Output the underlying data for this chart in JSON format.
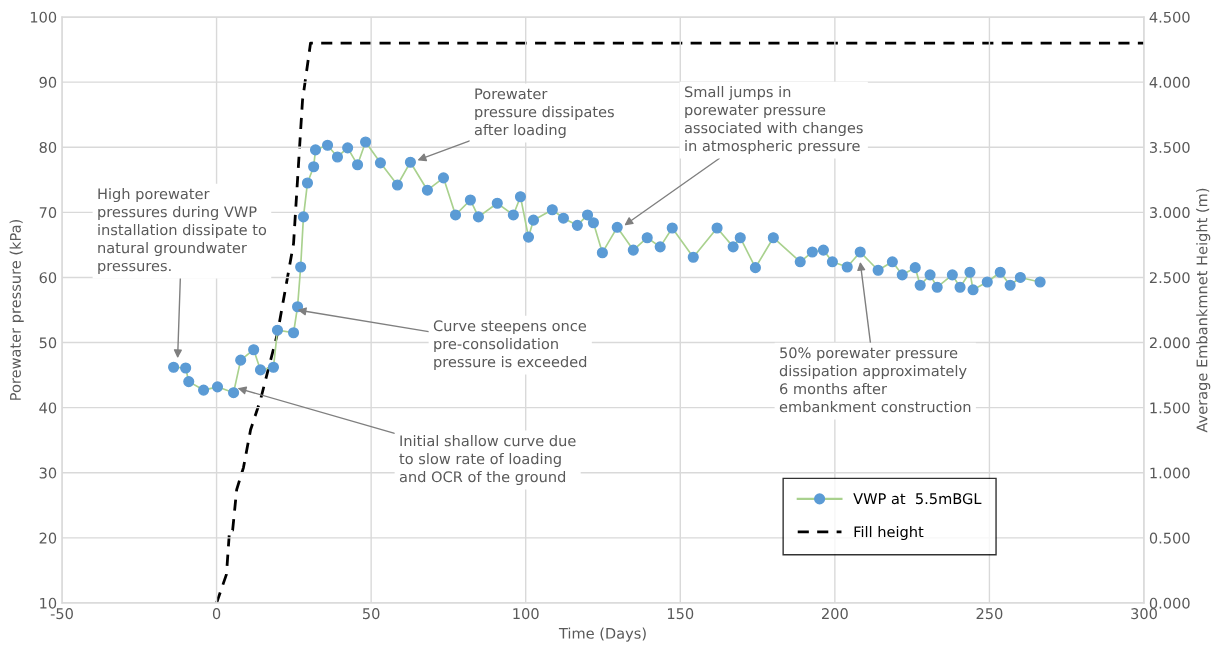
{
  "chart_data": {
    "type": "line",
    "xlabel": "Time (Days)",
    "ylabel": "Porewater pressure (kPa)",
    "y2label": "Average Embankmnet Height (m)",
    "xlim": [
      -50,
      300
    ],
    "xticks": [
      -50,
      0,
      50,
      100,
      150,
      200,
      250,
      300
    ],
    "ylim": [
      10,
      100
    ],
    "yticks": [
      10,
      20,
      30,
      40,
      50,
      60,
      70,
      80,
      90,
      100
    ],
    "y2lim": [
      0,
      4.5
    ],
    "y2ticks": [
      {
        "value": 0,
        "label": "0.000"
      },
      {
        "value": 0.5,
        "label": "0.500"
      },
      {
        "value": 1,
        "label": "1.000"
      },
      {
        "value": 1.5,
        "label": "1.500"
      },
      {
        "value": 2,
        "label": "2.000"
      },
      {
        "value": 2.5,
        "label": "2.500"
      },
      {
        "value": 3,
        "label": "3.000"
      },
      {
        "value": 3.5,
        "label": "3.500"
      },
      {
        "value": 4,
        "label": "4.000"
      },
      {
        "value": 4.5,
        "label": "4.500"
      }
    ],
    "grid": true,
    "legend": "bottom right",
    "series": [
      {
        "name": "VWP at  5.5mBGL",
        "color": "#5b9bd5",
        "marker": "circle",
        "line_style": "solid",
        "x": [
          -13.9,
          -10,
          -9,
          -4.2,
          0.3,
          5.5,
          7.8,
          12,
          14.2,
          18.4,
          19.7,
          24.9,
          26.2,
          27.2,
          28.1,
          29.4,
          31.4,
          32,
          35.9,
          39.1,
          42.4,
          45.6,
          48.2,
          53,
          58.5,
          62.7,
          68.2,
          73.4,
          77.3,
          82.1,
          84.7,
          90.8,
          96,
          98.3,
          100.9,
          102.5,
          108.6,
          112.2,
          116.7,
          120,
          121.9,
          124.8,
          129.6,
          134.8,
          139.3,
          143.5,
          147.4,
          154.2,
          161.9,
          167.1,
          169.4,
          174.3,
          180.1,
          188.8,
          192.7,
          196.3,
          199.2,
          204,
          208.2,
          214,
          218.6,
          221.8,
          226,
          227.6,
          230.8,
          233.1,
          238,
          240.5,
          243.7,
          244.7,
          249.3,
          253.5,
          256.7,
          260,
          266.4
        ],
        "values": [
          46.2,
          46.1,
          44,
          42.7,
          43.2,
          42.3,
          47.3,
          48.9,
          45.8,
          46.2,
          51.9,
          51.5,
          55.5,
          61.6,
          69.3,
          74.5,
          77,
          79.6,
          80.3,
          78.5,
          79.9,
          77.3,
          80.8,
          77.6,
          74.2,
          77.7,
          73.4,
          75.3,
          69.6,
          71.9,
          69.3,
          71.4,
          69.6,
          72.4,
          66.2,
          68.8,
          70.4,
          69.1,
          68,
          69.6,
          68.4,
          63.8,
          67.7,
          64.2,
          66.1,
          64.7,
          67.6,
          63.1,
          67.6,
          64.7,
          66.1,
          61.5,
          66.1,
          62.4,
          63.9,
          64.2,
          62.4,
          61.6,
          63.9,
          61.1,
          62.4,
          60.4,
          61.5,
          58.8,
          60.4,
          58.5,
          60.4,
          58.5,
          60.8,
          58.1,
          59.3,
          60.8,
          58.8,
          60,
          59.3
        ]
      },
      {
        "name": "Fill height",
        "color": "#000000",
        "marker": "none",
        "line_style": "dashed",
        "axis": "y2",
        "x": [
          0,
          3.2,
          4.2,
          5.2,
          6.5,
          8.7,
          11,
          14.2,
          19.7,
          24.9,
          27.8,
          30.4,
          300
        ],
        "values": [
          0,
          0.22,
          0.56,
          0.56,
          0.87,
          1.04,
          1.33,
          1.56,
          2.07,
          2.76,
          3.86,
          4.3,
          4.3
        ]
      }
    ],
    "annotations": [
      {
        "text": "High porewater\npressures during VWP\ninstallation dissipate to\nnatural groundwater\npressures.",
        "x": -12.6,
        "y": 47.6
      },
      {
        "text": "Porewater\npressure dissipates\nafter loading",
        "x": 65,
        "y": 78
      },
      {
        "text": "Small jumps in\nporewater pressure\nassociated with changes\nin atmospheric pressure",
        "x": 131.9,
        "y": 68
      },
      {
        "text": "Curve steepens once\npre-consolidation\npressure is exceeded",
        "x": 26.2,
        "y": 55
      },
      {
        "text": "Initial shallow curve due\nto slow rate of loading\nand OCR of the ground",
        "x": 6.8,
        "y": 43
      },
      {
        "text": "50% porewater pressure\ndissipation approximately\n6 months after\nembankment construction",
        "x": 208.2,
        "y": 62.4
      }
    ]
  }
}
